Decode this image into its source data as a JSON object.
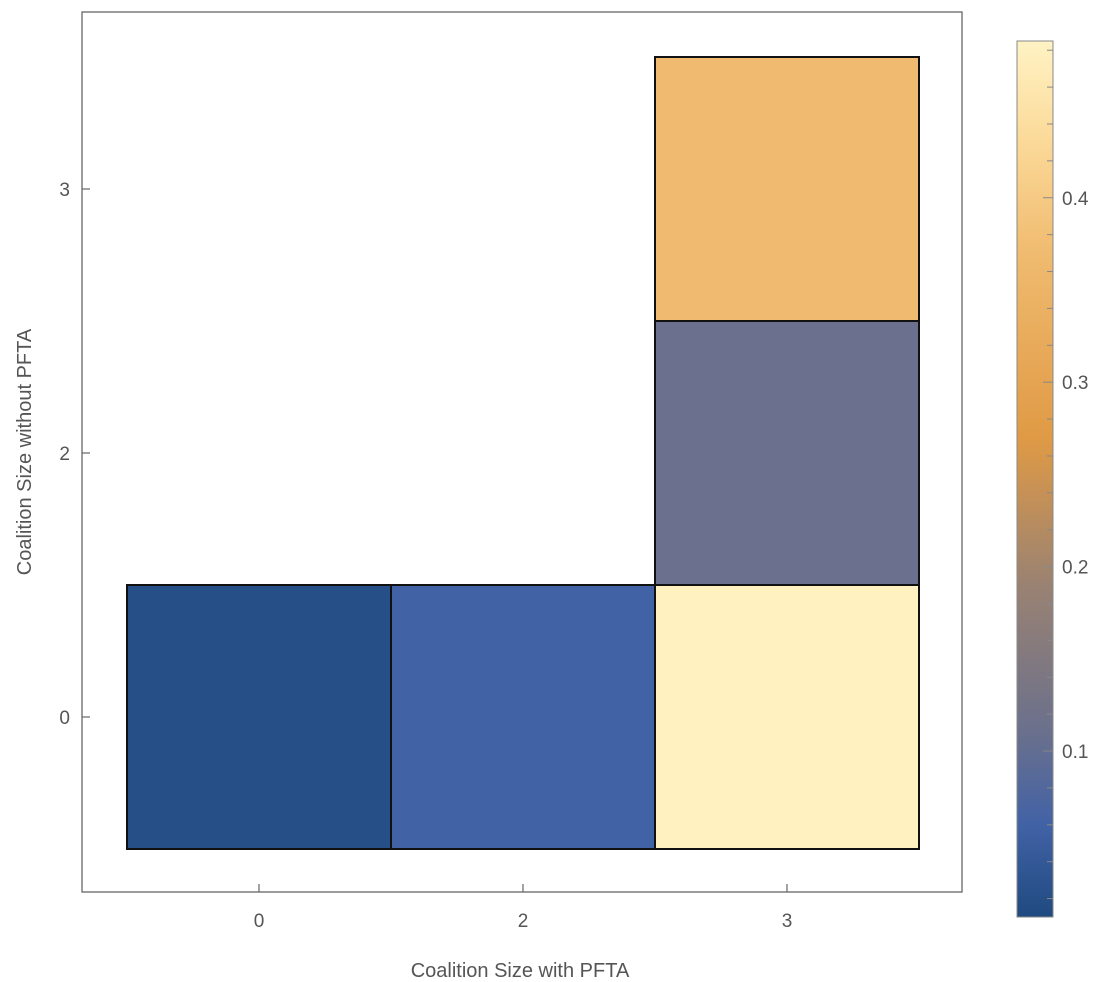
{
  "chart_data": {
    "type": "heatmap",
    "title": "",
    "xlabel": "Coalition Size with PFTA",
    "ylabel": "Coalition  Size without PFTA",
    "x_categories": [
      "0",
      "2",
      "3"
    ],
    "y_categories": [
      "0",
      "2",
      "3"
    ],
    "cells": [
      {
        "x": "0",
        "y": "0",
        "value": 0.02
      },
      {
        "x": "2",
        "y": "0",
        "value": 0.06
      },
      {
        "x": "3",
        "y": "0",
        "value": 0.48
      },
      {
        "x": "3",
        "y": "2",
        "value": 0.11
      },
      {
        "x": "3",
        "y": "3",
        "value": 0.37
      }
    ],
    "colorbar": {
      "range": [
        0.01,
        0.485
      ],
      "ticks": [
        0.1,
        0.2,
        0.3,
        0.4
      ],
      "tick_labels": [
        "0.1",
        "0.2",
        "0.3",
        "0.4"
      ]
    },
    "colormap": [
      {
        "v": 0.01,
        "color": "#1f4a80"
      },
      {
        "v": 0.06,
        "color": "#4262a6"
      },
      {
        "v": 0.11,
        "color": "#6a708d"
      },
      {
        "v": 0.19,
        "color": "#9a8272"
      },
      {
        "v": 0.27,
        "color": "#e09a45"
      },
      {
        "v": 0.37,
        "color": "#f0bb70"
      },
      {
        "v": 0.43,
        "color": "#fbd998"
      },
      {
        "v": 0.485,
        "color": "#fff3c4"
      }
    ],
    "grid": false,
    "legend_position": "right"
  }
}
